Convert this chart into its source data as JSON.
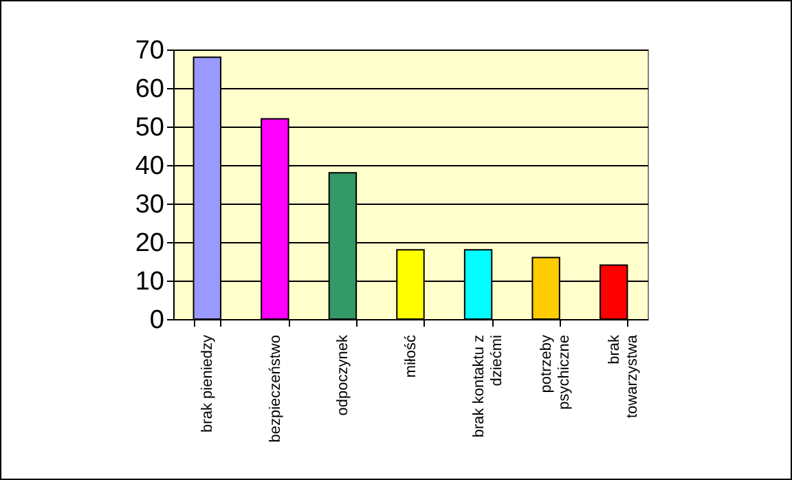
{
  "chart_data": {
    "type": "bar",
    "categories": [
      "brak pieniedzy",
      "bezpieczeństwo",
      "odpoczynek",
      "miłość",
      "brak kontaktu z dziećmi",
      "potrzeby psychiczne",
      "brak towarzystwa"
    ],
    "values": [
      68,
      52,
      38,
      18,
      18,
      16,
      14
    ],
    "colors": [
      "#9999ff",
      "#ff00ff",
      "#339966",
      "#ffff00",
      "#00ffff",
      "#ffcc00",
      "#ff0000"
    ],
    "ylim": [
      0,
      70
    ],
    "yticks": [
      0,
      10,
      20,
      30,
      40,
      50,
      60,
      70
    ],
    "grid": "y"
  }
}
